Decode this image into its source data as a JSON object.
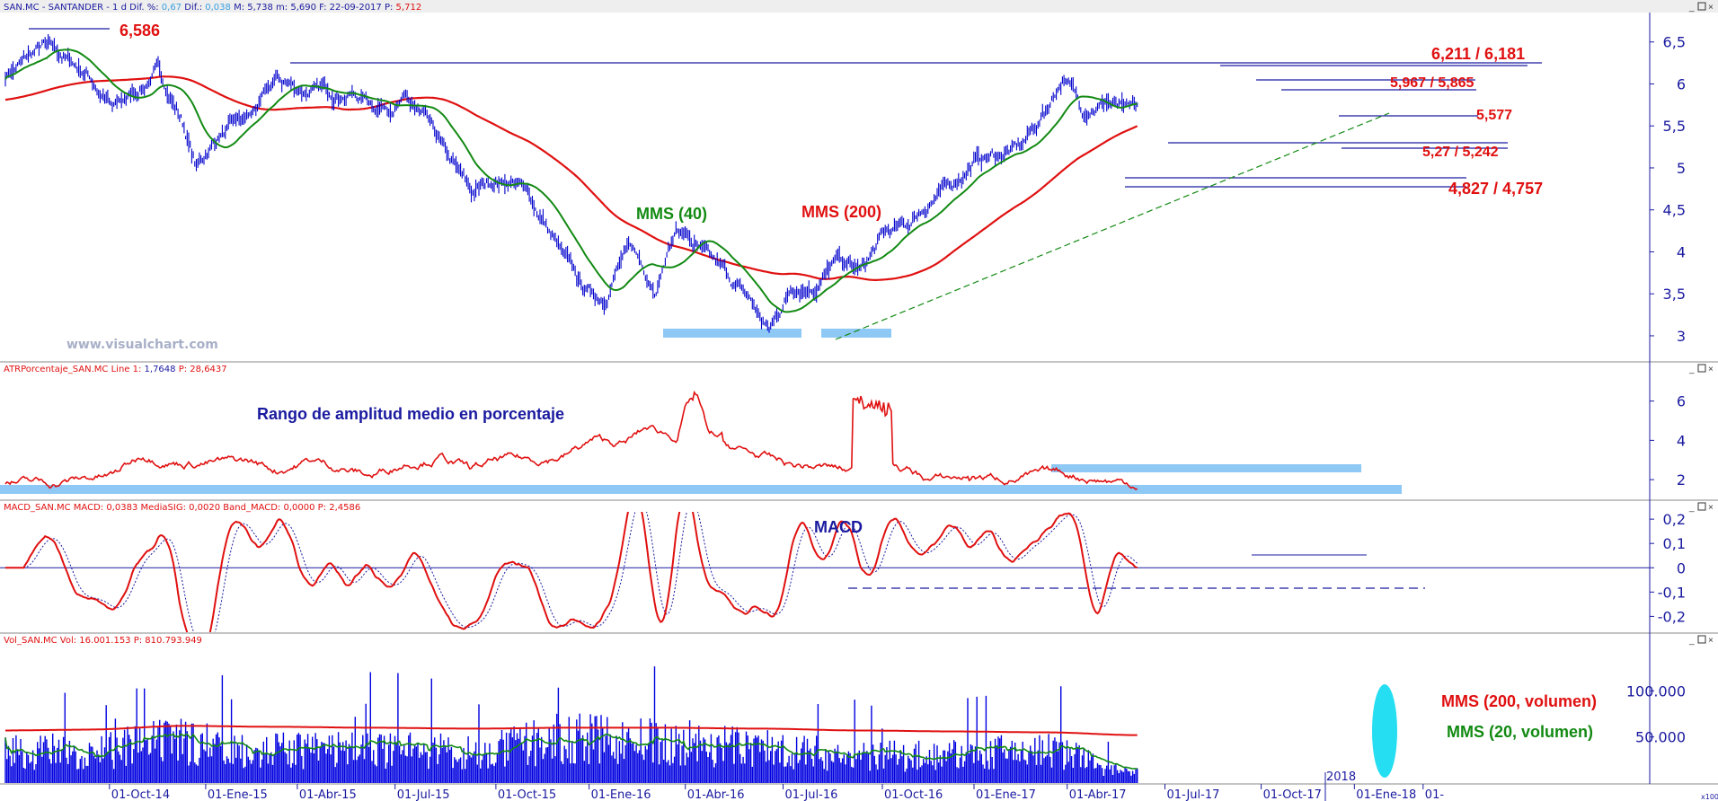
{
  "panels": [
    {
      "id": "price",
      "header": {
        "parts": [
          {
            "text": "SAN.MC - SANTANDER - 1 d  Dif. %: ",
            "color": "#1a1aa0"
          },
          {
            "text": "0,67",
            "color": "#3aa0e0"
          },
          {
            "text": "  Dif.: ",
            "color": "#1a1aa0"
          },
          {
            "text": "0,038",
            "color": "#3aa0e0"
          },
          {
            "text": "  M: 5,738  m: 5,690  F: 22-09-2017  P: ",
            "color": "#1a1aa0"
          },
          {
            "text": "5,712",
            "color": "#e01010"
          }
        ]
      },
      "yticks": [
        "6,5",
        "6",
        "5,5",
        "5",
        "4,5",
        "4",
        "3,5",
        "3"
      ],
      "yrange": [
        2.7,
        6.85
      ]
    },
    {
      "id": "atr",
      "header": {
        "parts": [
          {
            "text": "ATRPorcentaje_SAN.MC  Line 1: ",
            "color": "#e01010"
          },
          {
            "text": "1,7648",
            "color": "#1a1aa0"
          },
          {
            "text": "  P: 28,6437",
            "color": "#e01010"
          }
        ]
      },
      "yticks": [
        "6",
        "4",
        "2"
      ],
      "yrange": [
        1,
        7.4
      ]
    },
    {
      "id": "macd",
      "header": {
        "parts": [
          {
            "text": "MACD_SAN.MC  MACD: 0,0383  MediaSIG: 0,0020  Band_MACD: 0,0000  P: 2,4586",
            "color": "#e01010"
          }
        ]
      },
      "yticks": [
        "0,2",
        "0,1",
        "0",
        "-0,1",
        "-0,2"
      ],
      "yrange": [
        -0.265,
        0.23
      ]
    },
    {
      "id": "volume",
      "header": {
        "parts": [
          {
            "text": "Vol_SAN.MC  Vol: 16.001.153  P: 810.793.949",
            "color": "#e01010"
          }
        ]
      },
      "yticks": [
        "100.000",
        "50.000"
      ],
      "yrange": [
        0,
        150000
      ]
    }
  ],
  "xaxis": {
    "labels": [
      "01-Oct-14",
      "01-Ene-15",
      "01-Abr-15",
      "01-Jul-15",
      "01-Oct-15",
      "01-Ene-16",
      "01-Abr-16",
      "01-Jul-16",
      "01-Oct-16",
      "01-Ene-17",
      "01-Abr-17",
      "01-Jul-17",
      "01-Oct-17",
      "2018",
      "01-Ene-18",
      "01-"
    ],
    "scale_label": "x100"
  },
  "annotations": {
    "max_price": "6,586",
    "res1": "6,211 / 6,181",
    "res2": "5,967 / 5,865",
    "res3": "5,577",
    "sup1": "5,27 / 5,242",
    "sup2": "4,827 / 4,757",
    "mms40": "MMS (40)",
    "mms200": "MMS (200)",
    "watermark": "www.visualchart.com",
    "atr_title": "Rango de amplitud medio en porcentaje",
    "macd_title": "MACD",
    "vol_mms200": "MMS (200, volumen)",
    "vol_mms20": "MMS (20, volumen)"
  },
  "colors": {
    "price": "#0000cc",
    "mms40": "#138a13",
    "mms200": "#e01010",
    "highlight": "#8ec8f5",
    "axis_text": "#1a1aa0",
    "annotation_red": "#e01010",
    "annotation_green": "#138a13",
    "volume": "#0000e0",
    "cyan": "#00d8f0"
  },
  "chart_data": [
    {
      "type": "line",
      "name": "Price",
      "x": [
        "01-Oct-14",
        "01-Ene-15",
        "01-Abr-15",
        "01-Jul-15",
        "01-Oct-15",
        "01-Ene-16",
        "01-Abr-16",
        "01-Jul-16",
        "01-Oct-16",
        "01-Ene-17",
        "01-Abr-17",
        "01-Jul-17",
        "22-09-2017"
      ],
      "series": [
        {
          "name": "",
          "values": [
            6.2,
            5.3,
            5.9,
            5.8,
            4.6,
            3.6,
            4.1,
            3.3,
            3.9,
            4.8,
            5.9,
            5.8,
            5.712
          ]
        },
        {
          "name": "MMS (40)",
          "values": [
            6.2,
            5.8,
            5.7,
            5.6,
            4.8,
            3.7,
            3.8,
            3.6,
            3.9,
            4.7,
            5.5,
            5.8,
            5.62
          ]
        },
        {
          "name": "MMS (200)",
          "values": [
            5.85,
            6.0,
            5.9,
            5.8,
            5.4,
            4.6,
            4.1,
            3.9,
            3.75,
            4.0,
            4.7,
            5.2,
            5.45
          ]
        }
      ],
      "ylim": [
        2.7,
        6.85
      ]
    },
    {
      "type": "line",
      "name": "ATRPorcentaje_SAN.MC",
      "x": [
        "01-Oct-14",
        "01-Ene-15",
        "01-Abr-15",
        "01-Jul-15",
        "01-Oct-15",
        "01-Ene-16",
        "01-Abr-16",
        "01-Jul-16",
        "01-Oct-16",
        "01-Ene-17",
        "01-Abr-17",
        "01-Jul-17",
        "22-09-2017"
      ],
      "series": [
        {
          "name": "Line 1",
          "values": [
            1.9,
            3.2,
            2.1,
            2.4,
            3.2,
            3.5,
            4.0,
            3.3,
            2.6,
            2.0,
            2.1,
            2.1,
            1.7648
          ]
        }
      ],
      "ylim": [
        1,
        7.4
      ]
    },
    {
      "type": "line",
      "name": "MACD_SAN.MC",
      "x": [
        "01-Oct-14",
        "01-Ene-15",
        "01-Abr-15",
        "01-Jul-15",
        "01-Oct-15",
        "01-Ene-16",
        "01-Abr-16",
        "01-Jul-16",
        "01-Oct-16",
        "01-Ene-17",
        "01-Abr-17",
        "01-Jul-17",
        "22-09-2017"
      ],
      "series": [
        {
          "name": "MACD",
          "values": [
            -0.05,
            -0.08,
            0.12,
            0.05,
            -0.05,
            -0.15,
            0.14,
            -0.15,
            0.08,
            0.12,
            0.15,
            0.02,
            0.0383
          ]
        },
        {
          "name": "MediaSIG",
          "values": [
            -0.03,
            -0.06,
            0.1,
            0.04,
            -0.04,
            -0.13,
            0.12,
            -0.13,
            0.07,
            0.11,
            0.13,
            0.01,
            0.002
          ]
        }
      ],
      "ylim": [
        -0.265,
        0.23
      ]
    },
    {
      "type": "bar",
      "name": "Vol_SAN.MC",
      "x": [
        "01-Oct-14",
        "01-Ene-15",
        "01-Abr-15",
        "01-Jul-15",
        "01-Oct-15",
        "01-Ene-16",
        "01-Abr-16",
        "01-Jul-16",
        "01-Oct-16",
        "01-Ene-17",
        "01-Abr-17",
        "01-Jul-17",
        "22-09-2017"
      ],
      "series": [
        {
          "name": "Vol",
          "values": [
            55000,
            70000,
            55000,
            58000,
            52000,
            75000,
            70000,
            60000,
            45000,
            48000,
            55000,
            52000,
            16001
          ]
        },
        {
          "name": "MMS (20, volumen)",
          "values": [
            35000,
            60000,
            52000,
            48000,
            45000,
            62000,
            58000,
            55000,
            38000,
            42000,
            52000,
            50000,
            42000
          ]
        },
        {
          "name": "MMS (200, volumen)",
          "values": [
            58000,
            62000,
            61000,
            60000,
            59000,
            60000,
            60000,
            59000,
            57000,
            56000,
            55000,
            53000,
            52000
          ]
        }
      ],
      "ylim": [
        0,
        150000
      ]
    }
  ]
}
